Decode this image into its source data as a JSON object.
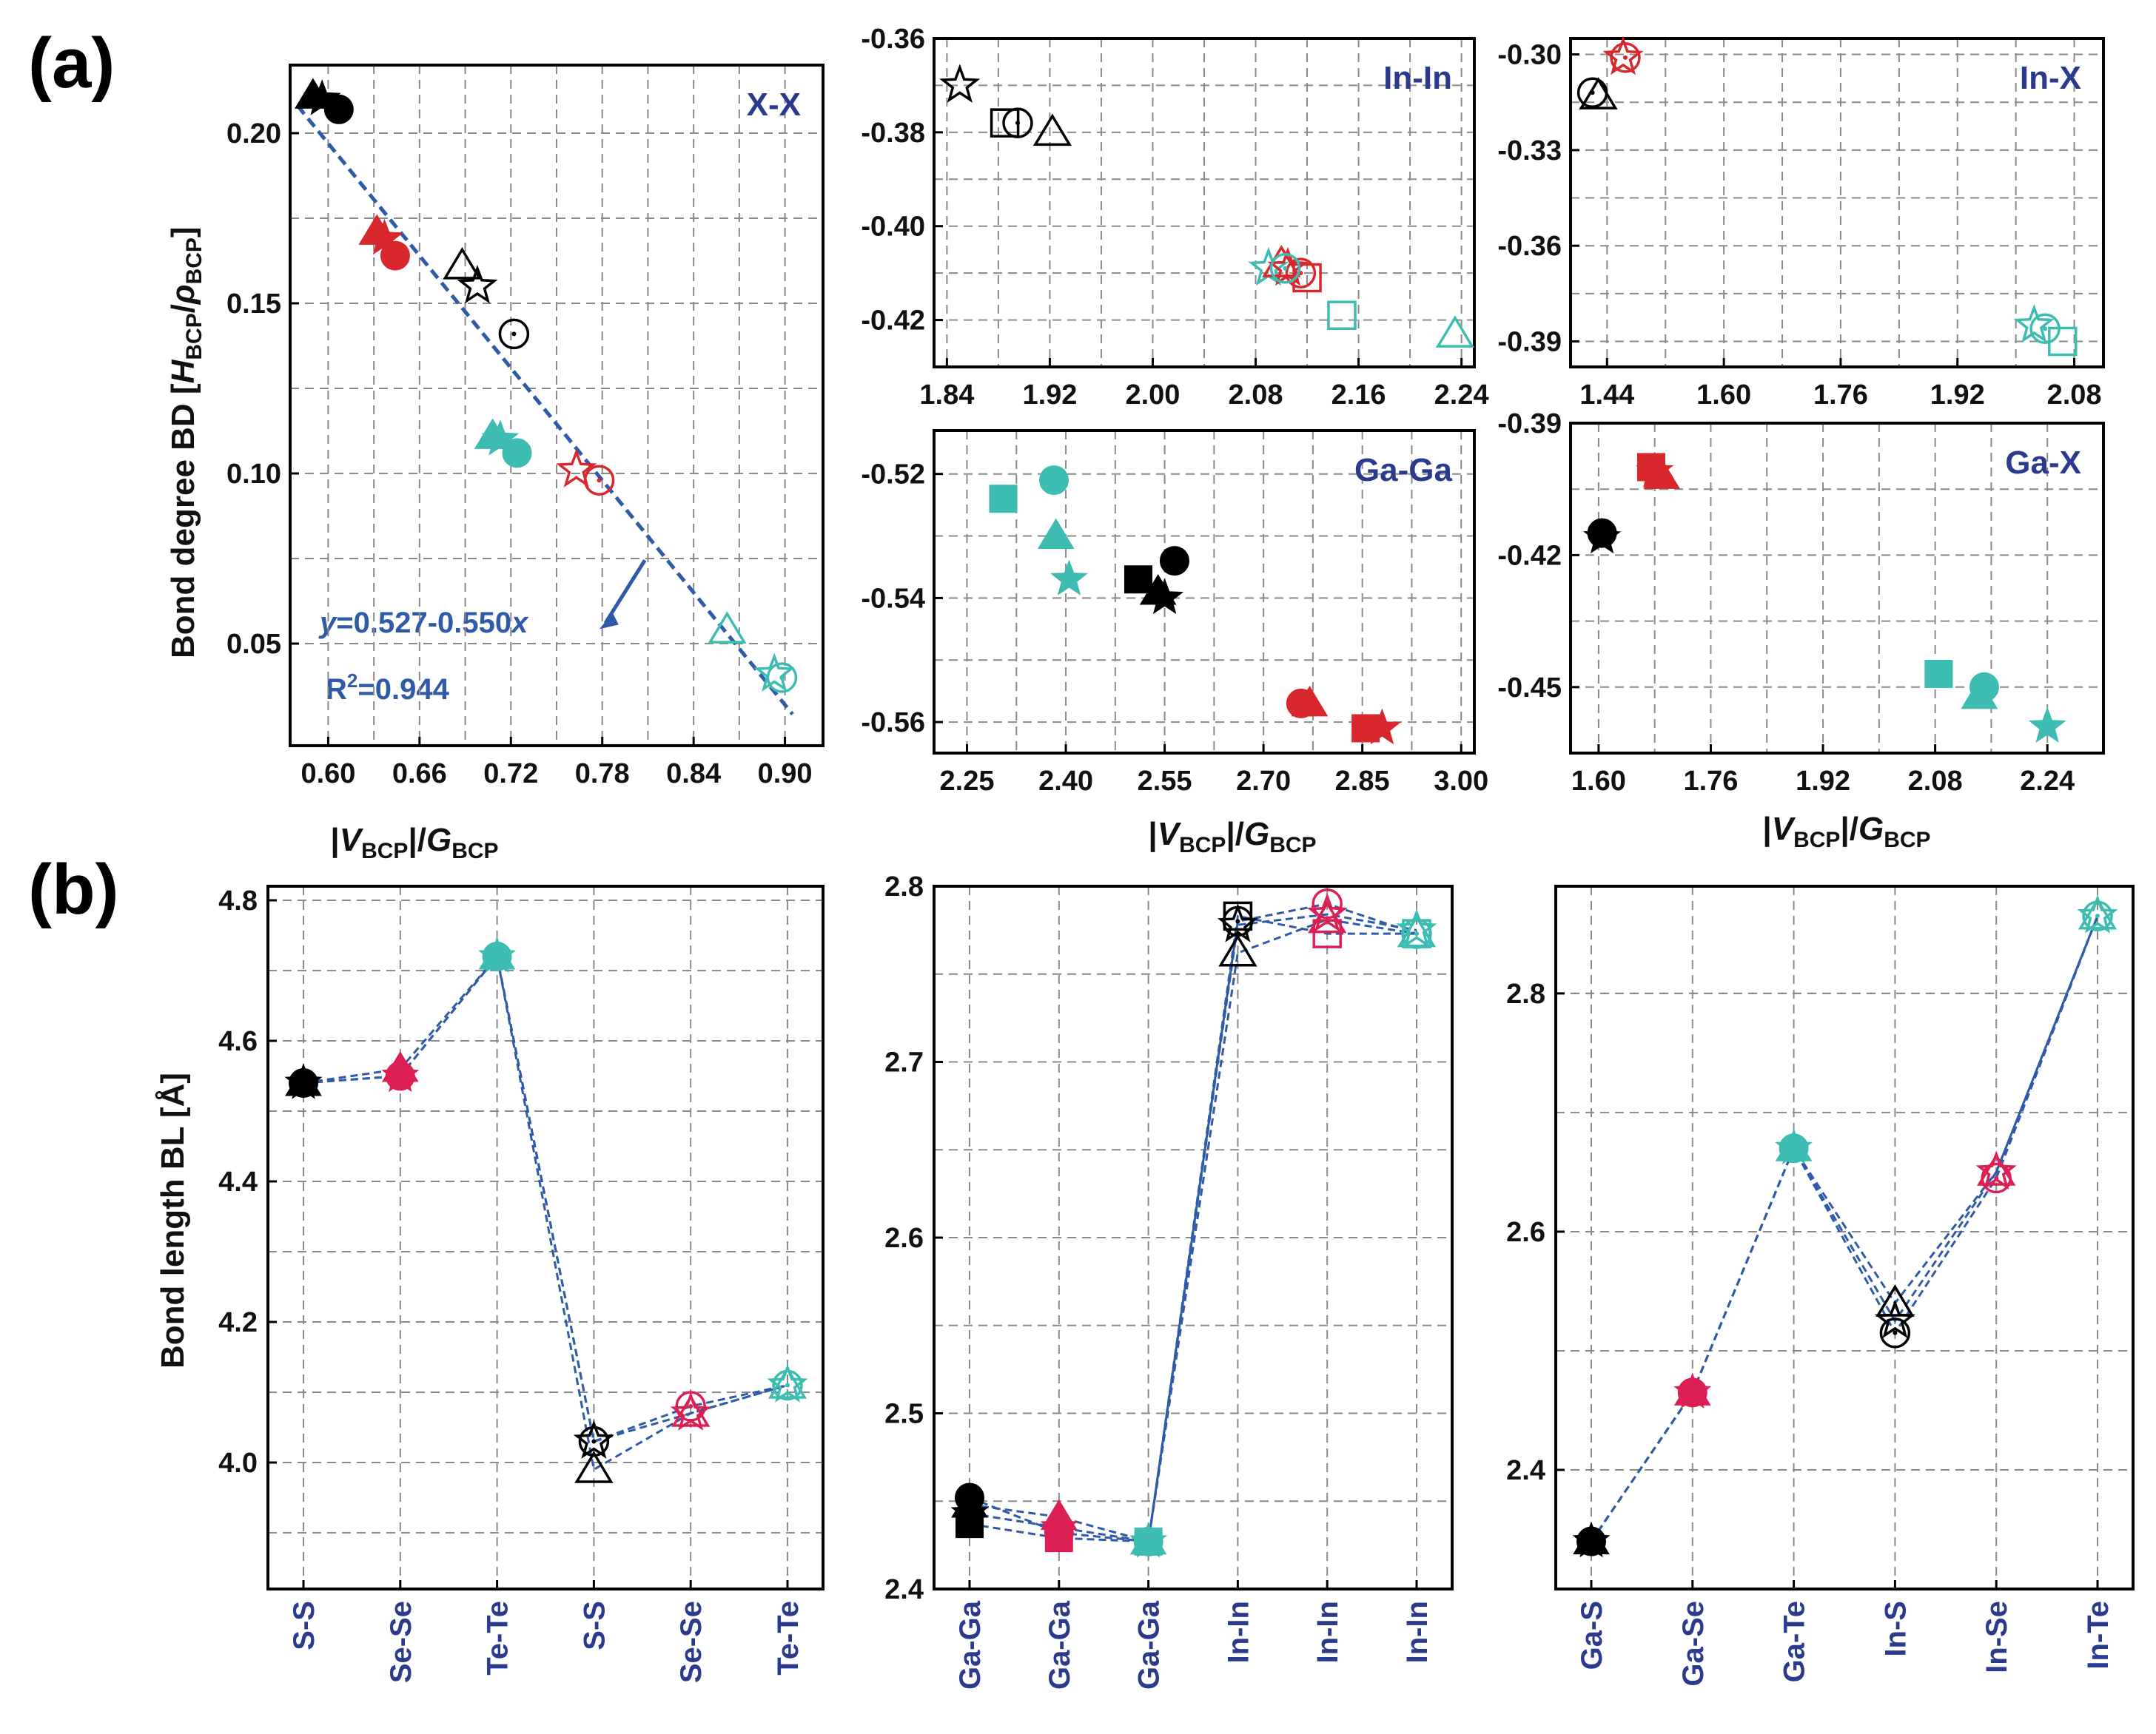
{
  "colors": {
    "black": "#000000",
    "red": "#d9272e",
    "crimson": "#dc1f54",
    "teal": "#3dbdb1",
    "fit": "#2e5aa8",
    "navy": "#2b3a8c",
    "grid": "#8a8a8a"
  },
  "labels": {
    "panel_a": "(a)",
    "panel_b": "(b)",
    "ylabel_a_main": "Bond degree BD [",
    "ylabel_a_H": "H",
    "ylabel_a_sub1": "BCP",
    "ylabel_a_slash": "/",
    "ylabel_a_rho": "ρ",
    "ylabel_a_sub2": "BCP",
    "ylabel_a_end": "]",
    "xlabel_bar": "|",
    "xlabel_V": "V",
    "xlabel_sub1": "BCP",
    "xlabel_mid": "|/",
    "xlabel_G": "G",
    "xlabel_sub2": "BCP",
    "ylabel_b": "Bond length BL [Å]",
    "fit_equation_y": "y",
    "fit_equation_rest": "=0.527-0.550",
    "fit_equation_x": "x",
    "r2_prefix": "R",
    "r2_sup": "2",
    "r2_value": "=0.944"
  },
  "chart_data": [
    {
      "id": "a_XX",
      "type": "scatter",
      "title": "X-X",
      "xlabel": "|VBCP|/GBCP",
      "ylabel": "Bond degree BD [HBCP/ρBCP]",
      "xlim": [
        0.575,
        0.925
      ],
      "ylim": [
        0.02,
        0.22
      ],
      "xticks": [
        0.6,
        0.66,
        0.72,
        0.78,
        0.84,
        0.9
      ],
      "xtick_labels": [
        "0.60",
        "0.66",
        "0.72",
        "0.78",
        "0.84",
        "0.90"
      ],
      "yticks": [
        0.05,
        0.1,
        0.15,
        0.2
      ],
      "ytick_labels": [
        "0.05",
        "0.10",
        "0.15",
        "0.20"
      ],
      "fit": {
        "intercept": 0.527,
        "slope": -0.55,
        "r2": 0.944
      },
      "points": [
        {
          "x": 0.59,
          "y": 0.211,
          "shape": "triangle",
          "color": "black",
          "filled": true
        },
        {
          "x": 0.596,
          "y": 0.21,
          "shape": "star",
          "color": "black",
          "filled": true
        },
        {
          "x": 0.607,
          "y": 0.207,
          "shape": "circle",
          "color": "black",
          "filled": true
        },
        {
          "x": 0.632,
          "y": 0.171,
          "shape": "triangle",
          "color": "red",
          "filled": true
        },
        {
          "x": 0.637,
          "y": 0.169,
          "shape": "star",
          "color": "red",
          "filled": true
        },
        {
          "x": 0.644,
          "y": 0.164,
          "shape": "circle",
          "color": "red",
          "filled": true
        },
        {
          "x": 0.688,
          "y": 0.161,
          "shape": "triangle",
          "color": "black",
          "filled": false
        },
        {
          "x": 0.698,
          "y": 0.155,
          "shape": "star",
          "color": "black",
          "filled": false
        },
        {
          "x": 0.722,
          "y": 0.141,
          "shape": "circle",
          "color": "black",
          "filled": false
        },
        {
          "x": 0.708,
          "y": 0.111,
          "shape": "triangle",
          "color": "teal",
          "filled": true
        },
        {
          "x": 0.713,
          "y": 0.11,
          "shape": "star",
          "color": "teal",
          "filled": true
        },
        {
          "x": 0.724,
          "y": 0.106,
          "shape": "circle",
          "color": "teal",
          "filled": true
        },
        {
          "x": 0.763,
          "y": 0.101,
          "shape": "star",
          "color": "red",
          "filled": false
        },
        {
          "x": 0.778,
          "y": 0.098,
          "shape": "circle",
          "color": "red",
          "filled": false
        },
        {
          "x": 0.862,
          "y": 0.054,
          "shape": "triangle",
          "color": "teal",
          "filled": false
        },
        {
          "x": 0.893,
          "y": 0.041,
          "shape": "star",
          "color": "teal",
          "filled": false
        },
        {
          "x": 0.898,
          "y": 0.04,
          "shape": "circle",
          "color": "teal",
          "filled": false
        }
      ]
    },
    {
      "id": "a_InIn",
      "type": "scatter",
      "title": "In-In",
      "xlim": [
        1.83,
        2.25
      ],
      "ylim": [
        -0.43,
        -0.36
      ],
      "xticks": [
        1.84,
        1.92,
        2.0,
        2.08,
        2.16,
        2.24
      ],
      "xtick_labels": [
        "1.84",
        "1.92",
        "2.00",
        "2.08",
        "2.16",
        "2.24"
      ],
      "yticks": [
        -0.36,
        -0.38,
        -0.4,
        -0.42
      ],
      "ytick_labels": [
        "-0.36",
        "-0.38",
        "-0.40",
        "-0.42"
      ],
      "points": [
        {
          "x": 1.85,
          "y": -0.37,
          "shape": "star",
          "color": "black",
          "filled": false
        },
        {
          "x": 1.885,
          "y": -0.378,
          "shape": "square",
          "color": "black",
          "filled": false
        },
        {
          "x": 1.895,
          "y": -0.378,
          "shape": "circle",
          "color": "black",
          "filled": false
        },
        {
          "x": 1.922,
          "y": -0.38,
          "shape": "triangle",
          "color": "black",
          "filled": false
        },
        {
          "x": 2.09,
          "y": -0.409,
          "shape": "star",
          "color": "teal",
          "filled": false
        },
        {
          "x": 2.1,
          "y": -0.408,
          "shape": "triangle",
          "color": "red",
          "filled": false
        },
        {
          "x": 2.105,
          "y": -0.409,
          "shape": "star",
          "color": "red",
          "filled": false
        },
        {
          "x": 2.115,
          "y": -0.41,
          "shape": "circle",
          "color": "red",
          "filled": false
        },
        {
          "x": 2.12,
          "y": -0.411,
          "shape": "square",
          "color": "red",
          "filled": false
        },
        {
          "x": 2.103,
          "y": -0.409,
          "shape": "circle",
          "color": "teal",
          "filled": false
        },
        {
          "x": 2.147,
          "y": -0.419,
          "shape": "square",
          "color": "teal",
          "filled": false
        },
        {
          "x": 2.235,
          "y": -0.423,
          "shape": "triangle",
          "color": "teal",
          "filled": false
        }
      ]
    },
    {
      "id": "a_InX",
      "type": "scatter",
      "title": "In-X",
      "xlim": [
        1.39,
        2.12
      ],
      "ylim": [
        -0.398,
        -0.295
      ],
      "xticks": [
        1.44,
        1.6,
        1.76,
        1.92,
        2.08
      ],
      "xtick_labels": [
        "1.44",
        "1.60",
        "1.76",
        "1.92",
        "2.08"
      ],
      "yticks": [
        -0.3,
        -0.33,
        -0.36,
        -0.39
      ],
      "ytick_labels": [
        "-0.30",
        "-0.33",
        "-0.36",
        "-0.39"
      ],
      "points": [
        {
          "x": 1.428,
          "y": -0.313,
          "shape": "triangle",
          "color": "black",
          "filled": false
        },
        {
          "x": 1.42,
          "y": -0.312,
          "shape": "circle",
          "color": "black",
          "filled": false
        },
        {
          "x": 1.462,
          "y": -0.301,
          "shape": "star",
          "color": "red",
          "filled": false
        },
        {
          "x": 1.465,
          "y": -0.301,
          "shape": "circle",
          "color": "red",
          "filled": false
        },
        {
          "x": 2.025,
          "y": -0.385,
          "shape": "star",
          "color": "teal",
          "filled": false
        },
        {
          "x": 2.04,
          "y": -0.386,
          "shape": "circle",
          "color": "teal",
          "filled": false
        },
        {
          "x": 2.064,
          "y": -0.39,
          "shape": "square",
          "color": "teal",
          "filled": false
        }
      ]
    },
    {
      "id": "a_GaGa",
      "type": "scatter",
      "title": "Ga-Ga",
      "xlim": [
        2.2,
        3.02
      ],
      "ylim": [
        -0.565,
        -0.513
      ],
      "xticks": [
        2.25,
        2.4,
        2.55,
        2.7,
        2.85,
        3.0
      ],
      "xtick_labels": [
        "2.25",
        "2.40",
        "2.55",
        "2.70",
        "2.85",
        "3.00"
      ],
      "yticks": [
        -0.52,
        -0.54,
        -0.56
      ],
      "ytick_labels": [
        "-0.52",
        "-0.54",
        "-0.56"
      ],
      "points": [
        {
          "x": 2.305,
          "y": -0.524,
          "shape": "square",
          "color": "teal",
          "filled": true
        },
        {
          "x": 2.382,
          "y": -0.521,
          "shape": "circle",
          "color": "teal",
          "filled": true
        },
        {
          "x": 2.385,
          "y": -0.53,
          "shape": "triangle",
          "color": "teal",
          "filled": true
        },
        {
          "x": 2.405,
          "y": -0.537,
          "shape": "star",
          "color": "teal",
          "filled": true
        },
        {
          "x": 2.51,
          "y": -0.537,
          "shape": "square",
          "color": "black",
          "filled": true
        },
        {
          "x": 2.54,
          "y": -0.539,
          "shape": "triangle",
          "color": "black",
          "filled": true
        },
        {
          "x": 2.55,
          "y": -0.54,
          "shape": "star",
          "color": "black",
          "filled": true
        },
        {
          "x": 2.565,
          "y": -0.534,
          "shape": "circle",
          "color": "black",
          "filled": true
        },
        {
          "x": 2.757,
          "y": -0.557,
          "shape": "circle",
          "color": "red",
          "filled": true
        },
        {
          "x": 2.77,
          "y": -0.557,
          "shape": "triangle",
          "color": "red",
          "filled": true
        },
        {
          "x": 2.855,
          "y": -0.561,
          "shape": "square",
          "color": "red",
          "filled": true
        },
        {
          "x": 2.88,
          "y": -0.561,
          "shape": "star",
          "color": "red",
          "filled": true
        }
      ]
    },
    {
      "id": "a_GaX",
      "type": "scatter",
      "title": "Ga-X",
      "xlim": [
        1.56,
        2.32
      ],
      "ylim": [
        -0.465,
        -0.39
      ],
      "xticks": [
        1.6,
        1.76,
        1.92,
        2.08,
        2.24
      ],
      "xtick_labels": [
        "1.60",
        "1.76",
        "1.92",
        "2.08",
        "2.24"
      ],
      "yticks": [
        -0.39,
        -0.42,
        -0.45
      ],
      "ytick_labels": [
        "-0.39",
        "-0.42",
        "-0.45"
      ],
      "points": [
        {
          "x": 1.605,
          "y": -0.416,
          "shape": "star",
          "color": "black",
          "filled": true
        },
        {
          "x": 1.605,
          "y": -0.415,
          "shape": "circle",
          "color": "black",
          "filled": true
        },
        {
          "x": 1.675,
          "y": -0.4,
          "shape": "square",
          "color": "red",
          "filled": true
        },
        {
          "x": 1.68,
          "y": -0.401,
          "shape": "star",
          "color": "red",
          "filled": true
        },
        {
          "x": 1.69,
          "y": -0.402,
          "shape": "triangle",
          "color": "red",
          "filled": true
        },
        {
          "x": 2.085,
          "y": -0.447,
          "shape": "square",
          "color": "teal",
          "filled": true
        },
        {
          "x": 2.15,
          "y": -0.45,
          "shape": "circle",
          "color": "teal",
          "filled": true
        },
        {
          "x": 2.143,
          "y": -0.452,
          "shape": "triangle",
          "color": "teal",
          "filled": true
        },
        {
          "x": 2.24,
          "y": -0.459,
          "shape": "star",
          "color": "teal",
          "filled": true
        }
      ]
    },
    {
      "id": "b1",
      "type": "line",
      "ylabel": "Bond length BL [Å]",
      "categories": [
        "S-S",
        "Se-Se",
        "Te-Te",
        "S-S",
        "Se-Se",
        "Te-Te"
      ],
      "ylim": [
        3.82,
        4.82
      ],
      "yticks": [
        4.0,
        4.2,
        4.4,
        4.6,
        4.8
      ],
      "ytick_labels": [
        "4.0",
        "4.2",
        "4.4",
        "4.6",
        "4.8"
      ],
      "series": [
        {
          "name": "triangle",
          "values": [
            4.54,
            4.56,
            4.72,
            3.99,
            4.07,
            4.11
          ]
        },
        {
          "name": "star",
          "values": [
            4.54,
            4.55,
            4.72,
            4.03,
            4.07,
            4.11
          ]
        },
        {
          "name": "circle",
          "values": [
            4.54,
            4.55,
            4.72,
            4.03,
            4.08,
            4.11
          ]
        }
      ],
      "point_styles": [
        {
          "color": "black",
          "filled": true
        },
        {
          "color": "crimson",
          "filled": true
        },
        {
          "color": "teal",
          "filled": true
        },
        {
          "color": "black",
          "filled": false
        },
        {
          "color": "crimson",
          "filled": false
        },
        {
          "color": "teal",
          "filled": false
        }
      ]
    },
    {
      "id": "b2",
      "type": "line",
      "categories": [
        "Ga-Ga",
        "Ga-Ga",
        "Ga-Ga",
        "In-In",
        "In-In",
        "In-In"
      ],
      "ylim": [
        2.4,
        2.8
      ],
      "yticks": [
        2.4,
        2.5,
        2.6,
        2.7,
        2.8
      ],
      "ytick_labels": [
        "2.4",
        "2.5",
        "2.6",
        "2.7",
        "2.8"
      ],
      "series": [
        {
          "name": "circle",
          "values": [
            2.452,
            2.432,
            2.427,
            2.78,
            2.79,
            2.773
          ]
        },
        {
          "name": "triangle",
          "values": [
            2.448,
            2.441,
            2.427,
            2.762,
            2.781,
            2.773
          ]
        },
        {
          "name": "square",
          "values": [
            2.437,
            2.429,
            2.427,
            2.783,
            2.773,
            2.773
          ]
        },
        {
          "name": "star",
          "values": [
            2.443,
            2.435,
            2.427,
            2.778,
            2.784,
            2.775
          ]
        }
      ],
      "point_styles": [
        {
          "color": "black",
          "filled": true
        },
        {
          "color": "crimson",
          "filled": true
        },
        {
          "color": "teal",
          "filled": true
        },
        {
          "color": "black",
          "filled": false
        },
        {
          "color": "crimson",
          "filled": false
        },
        {
          "color": "teal",
          "filled": false
        }
      ]
    },
    {
      "id": "b3",
      "type": "line",
      "categories": [
        "Ga-S",
        "Ga-Se",
        "Ga-Te",
        "In-S",
        "In-Se",
        "In-Te"
      ],
      "ylim": [
        2.3,
        2.89
      ],
      "yticks": [
        2.4,
        2.6,
        2.8
      ],
      "ytick_labels": [
        "2.4",
        "2.6",
        "2.8"
      ],
      "series": [
        {
          "name": "circle",
          "values": [
            2.34,
            2.465,
            2.67,
            2.515,
            2.645,
            2.865
          ]
        },
        {
          "name": "triangle",
          "values": [
            2.34,
            2.465,
            2.67,
            2.54,
            2.65,
            2.865
          ]
        },
        {
          "name": "star",
          "values": [
            2.34,
            2.465,
            2.67,
            2.525,
            2.65,
            2.865
          ]
        }
      ],
      "point_styles": [
        {
          "color": "black",
          "filled": true
        },
        {
          "color": "crimson",
          "filled": true
        },
        {
          "color": "teal",
          "filled": true
        },
        {
          "color": "black",
          "filled": false
        },
        {
          "color": "crimson",
          "filled": false
        },
        {
          "color": "teal",
          "filled": false
        }
      ]
    }
  ]
}
